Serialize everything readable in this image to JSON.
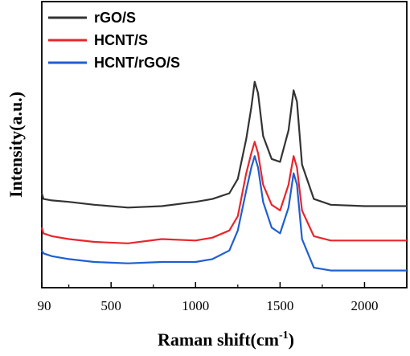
{
  "chart_data": {
    "type": "line",
    "xlabel": "Raman shift(cm",
    "xlabel_sup": "-1",
    "xlabel_close": ")",
    "ylabel": "Intensity(a.u.)",
    "xlim": [
      90,
      2250
    ],
    "ylim": [
      0,
      1
    ],
    "x_ticks": [
      90,
      500,
      1000,
      1500,
      2000
    ],
    "x_tick_labels": [
      "90",
      "500",
      "1000",
      "1500",
      "2000"
    ],
    "y_tick_labels": false,
    "grid": false,
    "legend_position": "top-left",
    "series": [
      {
        "name": "rGO/S",
        "color": "#333333",
        "x": [
          90,
          100,
          150,
          250,
          400,
          600,
          800,
          1000,
          1100,
          1200,
          1250,
          1300,
          1330,
          1350,
          1370,
          1400,
          1450,
          1500,
          1550,
          1580,
          1600,
          1630,
          1700,
          1800,
          2000,
          2250
        ],
        "y": [
          0.33,
          0.31,
          0.305,
          0.3,
          0.29,
          0.28,
          0.285,
          0.3,
          0.31,
          0.33,
          0.38,
          0.52,
          0.63,
          0.72,
          0.68,
          0.53,
          0.45,
          0.44,
          0.55,
          0.69,
          0.65,
          0.43,
          0.31,
          0.29,
          0.285,
          0.285
        ]
      },
      {
        "name": "HCNT/S",
        "color": "#e8262c",
        "x": [
          90,
          100,
          150,
          250,
          400,
          600,
          800,
          1000,
          1100,
          1200,
          1250,
          1300,
          1330,
          1350,
          1370,
          1400,
          1450,
          1500,
          1550,
          1580,
          1600,
          1630,
          1700,
          1800,
          2000,
          2250
        ],
        "y": [
          0.21,
          0.19,
          0.18,
          0.17,
          0.16,
          0.155,
          0.17,
          0.165,
          0.175,
          0.2,
          0.25,
          0.4,
          0.47,
          0.51,
          0.47,
          0.36,
          0.29,
          0.27,
          0.36,
          0.46,
          0.42,
          0.27,
          0.18,
          0.165,
          0.165,
          0.165
        ]
      },
      {
        "name": "HCNT/rGO/S",
        "color": "#1f5fd0",
        "x": [
          90,
          100,
          150,
          250,
          400,
          600,
          800,
          1000,
          1100,
          1200,
          1250,
          1300,
          1330,
          1350,
          1370,
          1400,
          1450,
          1500,
          1550,
          1580,
          1600,
          1630,
          1700,
          1800,
          2000,
          2250
        ],
        "y": [
          0.13,
          0.12,
          0.11,
          0.1,
          0.09,
          0.085,
          0.09,
          0.09,
          0.1,
          0.13,
          0.2,
          0.34,
          0.42,
          0.46,
          0.42,
          0.3,
          0.21,
          0.19,
          0.28,
          0.4,
          0.36,
          0.17,
          0.07,
          0.06,
          0.06,
          0.06
        ]
      }
    ]
  }
}
